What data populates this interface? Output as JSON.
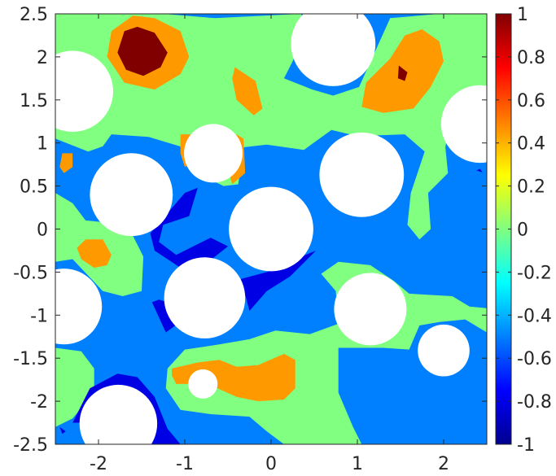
{
  "chart_data": {
    "type": "heatmap",
    "title": "",
    "xlabel": "",
    "ylabel": "",
    "xlim": [
      -2.5,
      2.5
    ],
    "ylim": [
      -2.5,
      2.5
    ],
    "x_ticks": [
      -2,
      -1,
      0,
      1,
      2
    ],
    "x_tick_labels": [
      "-2",
      "-1",
      "0",
      "1",
      "2"
    ],
    "y_ticks": [
      2.5,
      2,
      1.5,
      1,
      0.5,
      0,
      -0.5,
      -1,
      -1.5,
      -2,
      -2.5
    ],
    "y_tick_labels": [
      "2.5",
      "2",
      "1.5",
      "1",
      "0.5",
      "0",
      "-0.5",
      "-1",
      "-1.5",
      "-2",
      "-2.5"
    ],
    "colorbar": {
      "colormap": "jet",
      "range": [
        -1,
        1
      ],
      "ticks": [
        1,
        0.8,
        0.6,
        0.4,
        0.2,
        0,
        -0.2,
        -0.4,
        -0.6,
        -0.8,
        -1
      ],
      "tick_labels": [
        "1",
        "0.8",
        "0.6",
        "0.4",
        "0.2",
        "0",
        "-0.2",
        "-0.4",
        "-0.6",
        "-0.8",
        "-1"
      ]
    },
    "background_level": -0.5,
    "holes": [
      {
        "x": -2.3,
        "y": 1.6,
        "r": 0.47
      },
      {
        "x": 0.72,
        "y": 2.15,
        "r": 0.49
      },
      {
        "x": 2.42,
        "y": 1.22,
        "r": 0.45
      },
      {
        "x": -0.67,
        "y": 0.88,
        "r": 0.34
      },
      {
        "x": -1.62,
        "y": 0.4,
        "r": 0.48
      },
      {
        "x": 1.05,
        "y": 0.63,
        "r": 0.49
      },
      {
        "x": 0.0,
        "y": 0.0,
        "r": 0.49
      },
      {
        "x": -0.77,
        "y": -0.8,
        "r": 0.47
      },
      {
        "x": -2.4,
        "y": -0.9,
        "r": 0.44
      },
      {
        "x": 1.15,
        "y": -0.93,
        "r": 0.42
      },
      {
        "x": 2.0,
        "y": -1.41,
        "r": 0.3
      },
      {
        "x": -0.79,
        "y": -1.8,
        "r": 0.17
      },
      {
        "x": -1.77,
        "y": -2.26,
        "r": 0.45
      }
    ],
    "level_regions": [
      {
        "level": 0.0,
        "points": [
          [
            -2.5,
            2.5
          ],
          [
            -1.25,
            2.5
          ],
          [
            -0.65,
            2.45
          ],
          [
            0.35,
            2.5
          ],
          [
            0.4,
            2.3
          ],
          [
            0.25,
            1.95
          ],
          [
            0.15,
            1.75
          ],
          [
            0.48,
            1.62
          ],
          [
            0.72,
            1.55
          ],
          [
            1.02,
            1.65
          ],
          [
            1.2,
            2.05
          ],
          [
            1.38,
            2.45
          ],
          [
            1.95,
            2.5
          ],
          [
            2.5,
            2.5
          ],
          [
            2.5,
            1.15
          ],
          [
            2.05,
            1.12
          ],
          [
            2.02,
            0.95
          ],
          [
            2.05,
            0.65
          ],
          [
            1.82,
            0.42
          ],
          [
            1.85,
            0.0
          ],
          [
            1.72,
            -0.12
          ],
          [
            1.58,
            0.05
          ],
          [
            1.62,
            0.42
          ],
          [
            1.78,
            0.9
          ],
          [
            1.55,
            1.1
          ],
          [
            1.0,
            1.08
          ],
          [
            0.7,
            1.15
          ],
          [
            0.38,
            0.92
          ],
          [
            -0.05,
            0.98
          ],
          [
            -0.32,
            0.95
          ],
          [
            -0.38,
            0.52
          ],
          [
            -0.55,
            0.5
          ],
          [
            -0.92,
            0.68
          ],
          [
            -1.02,
            0.95
          ],
          [
            -1.42,
            1.07
          ],
          [
            -1.85,
            1.1
          ],
          [
            -1.95,
            0.96
          ],
          [
            -2.12,
            0.9
          ],
          [
            -2.5,
            1.05
          ]
        ]
      },
      {
        "level": 0.0,
        "points": [
          [
            -2.5,
            -0.38
          ],
          [
            -2.3,
            -0.35
          ],
          [
            -1.95,
            -0.72
          ],
          [
            -1.72,
            -0.78
          ],
          [
            -1.5,
            -0.72
          ],
          [
            -1.48,
            -0.32
          ],
          [
            -1.6,
            -0.08
          ],
          [
            -1.95,
            0.08
          ],
          [
            -2.15,
            0.1
          ],
          [
            -2.3,
            0.3
          ],
          [
            -2.5,
            0.42
          ]
        ]
      },
      {
        "level": 0.0,
        "points": [
          [
            -1.2,
            -1.62
          ],
          [
            -1.0,
            -1.4
          ],
          [
            -0.6,
            -1.34
          ],
          [
            -0.25,
            -1.28
          ],
          [
            0.05,
            -1.18
          ],
          [
            0.45,
            -1.22
          ],
          [
            0.78,
            -1.1
          ],
          [
            0.75,
            -0.72
          ],
          [
            0.58,
            -0.52
          ],
          [
            0.78,
            -0.38
          ],
          [
            1.15,
            -0.42
          ],
          [
            1.42,
            -0.6
          ],
          [
            1.6,
            -0.75
          ],
          [
            2.1,
            -0.78
          ],
          [
            2.3,
            -0.9
          ],
          [
            2.5,
            -0.92
          ],
          [
            2.5,
            -1.2
          ],
          [
            2.25,
            -1.05
          ],
          [
            1.95,
            -1.08
          ],
          [
            1.72,
            -1.12
          ],
          [
            1.6,
            -1.4
          ],
          [
            1.3,
            -1.38
          ],
          [
            0.78,
            -1.38
          ],
          [
            0.78,
            -1.9
          ],
          [
            0.95,
            -2.3
          ],
          [
            1.05,
            -2.5
          ],
          [
            0.15,
            -2.5
          ],
          [
            -0.05,
            -2.35
          ],
          [
            -0.25,
            -2.18
          ],
          [
            -0.7,
            -2.15
          ],
          [
            -1.05,
            -2.1
          ],
          [
            -1.22,
            -1.85
          ]
        ]
      },
      {
        "level": 0.0,
        "points": [
          [
            -2.5,
            -1.38
          ],
          [
            -2.2,
            -1.42
          ],
          [
            -2.05,
            -1.62
          ],
          [
            -2.05,
            -1.9
          ],
          [
            -2.3,
            -2.2
          ],
          [
            -2.5,
            -2.3
          ]
        ]
      },
      {
        "level": -0.8,
        "points": [
          [
            -1.3,
            -0.15
          ],
          [
            -1.1,
            -0.3
          ],
          [
            -0.7,
            -0.1
          ],
          [
            -0.5,
            -0.2
          ],
          [
            -0.75,
            -0.4
          ],
          [
            -1.05,
            -0.45
          ],
          [
            -1.2,
            -0.35
          ],
          [
            -1.35,
            -0.25
          ],
          [
            -1.4,
            -0.05
          ],
          [
            -1.0,
            0.42
          ],
          [
            -0.85,
            0.48
          ],
          [
            -0.95,
            0.15
          ],
          [
            -1.25,
            0.05
          ]
        ]
      },
      {
        "level": -0.8,
        "points": [
          [
            0.52,
            -0.25
          ],
          [
            0.22,
            -0.55
          ],
          [
            -0.05,
            -0.72
          ],
          [
            -0.25,
            -0.95
          ],
          [
            -0.35,
            -0.58
          ],
          [
            -0.05,
            -0.5
          ],
          [
            0.28,
            -0.35
          ]
        ]
      },
      {
        "level": -0.8,
        "points": [
          [
            -1.38,
            -0.85
          ],
          [
            -1.22,
            -1.2
          ],
          [
            -1.08,
            -1.1
          ],
          [
            -1.2,
            -0.85
          ],
          [
            -1.3,
            -0.82
          ]
        ]
      },
      {
        "level": -0.8,
        "points": [
          [
            -2.3,
            -2.25
          ],
          [
            -2.1,
            -1.85
          ],
          [
            -1.78,
            -1.68
          ],
          [
            -1.55,
            -1.72
          ],
          [
            -1.35,
            -1.95
          ],
          [
            -1.2,
            -2.32
          ],
          [
            -1.05,
            -2.5
          ],
          [
            -1.5,
            -2.5
          ],
          [
            -1.8,
            -2.15
          ],
          [
            -2.15,
            -2.25
          ]
        ]
      },
      {
        "level": -0.8,
        "points": [
          [
            -2.45,
            -2.3
          ],
          [
            -2.38,
            -2.35
          ],
          [
            -2.42,
            -2.38
          ]
        ]
      },
      {
        "level": -0.8,
        "points": [
          [
            2.38,
            0.68
          ],
          [
            2.45,
            0.66
          ],
          [
            2.42,
            0.7
          ]
        ]
      },
      {
        "level": 0.45,
        "points": [
          [
            -1.35,
            2.45
          ],
          [
            -1.05,
            2.3
          ],
          [
            -0.95,
            2.0
          ],
          [
            -1.05,
            1.8
          ],
          [
            -1.35,
            1.62
          ],
          [
            -1.7,
            1.7
          ],
          [
            -1.9,
            2.0
          ],
          [
            -1.85,
            2.3
          ],
          [
            -1.6,
            2.48
          ]
        ]
      },
      {
        "level": 0.45,
        "points": [
          [
            -0.42,
            1.88
          ],
          [
            -0.18,
            1.72
          ],
          [
            -0.1,
            1.4
          ],
          [
            -0.2,
            1.32
          ],
          [
            -0.4,
            1.5
          ],
          [
            -0.45,
            1.75
          ]
        ]
      },
      {
        "level": 0.45,
        "points": [
          [
            1.75,
            2.32
          ],
          [
            1.95,
            2.18
          ],
          [
            2.0,
            1.95
          ],
          [
            1.85,
            1.65
          ],
          [
            1.65,
            1.4
          ],
          [
            1.3,
            1.35
          ],
          [
            1.05,
            1.42
          ],
          [
            1.1,
            1.7
          ],
          [
            1.38,
            1.98
          ],
          [
            1.55,
            2.25
          ]
        ]
      },
      {
        "level": 0.45,
        "points": [
          [
            -1.05,
            1.1
          ],
          [
            -0.92,
            1.1
          ],
          [
            -0.95,
            0.75
          ],
          [
            -1.0,
            0.72
          ],
          [
            -1.05,
            0.88
          ]
        ]
      },
      {
        "level": 0.45,
        "points": [
          [
            -0.4,
            1.1
          ],
          [
            -0.32,
            1.05
          ],
          [
            -0.3,
            0.65
          ],
          [
            -0.45,
            0.52
          ],
          [
            -0.5,
            0.7
          ]
        ]
      },
      {
        "level": 0.45,
        "points": [
          [
            -2.42,
            0.88
          ],
          [
            -2.3,
            0.88
          ],
          [
            -2.3,
            0.72
          ],
          [
            -2.4,
            0.65
          ],
          [
            -2.45,
            0.72
          ]
        ]
      },
      {
        "level": 0.45,
        "points": [
          [
            -2.15,
            -0.12
          ],
          [
            -1.95,
            -0.12
          ],
          [
            -1.85,
            -0.3
          ],
          [
            -1.9,
            -0.42
          ],
          [
            -2.05,
            -0.45
          ],
          [
            -2.2,
            -0.35
          ],
          [
            -2.25,
            -0.22
          ]
        ]
      },
      {
        "level": 0.45,
        "points": [
          [
            -1.15,
            -1.62
          ],
          [
            -0.85,
            -1.55
          ],
          [
            -0.6,
            -1.52
          ],
          [
            -0.4,
            -1.6
          ],
          [
            -0.15,
            -1.58
          ],
          [
            0.15,
            -1.45
          ],
          [
            0.28,
            -1.52
          ],
          [
            0.28,
            -1.85
          ],
          [
            0.15,
            -1.98
          ],
          [
            -0.15,
            -2.0
          ],
          [
            -0.4,
            -1.95
          ],
          [
            -0.62,
            -1.85
          ],
          [
            -0.85,
            -1.8
          ],
          [
            -1.1,
            -1.8
          ],
          [
            -1.15,
            -1.7
          ]
        ]
      },
      {
        "level": 1.0,
        "points": [
          [
            -1.55,
            2.35
          ],
          [
            -1.35,
            2.28
          ],
          [
            -1.2,
            2.05
          ],
          [
            -1.28,
            1.88
          ],
          [
            -1.48,
            1.78
          ],
          [
            -1.68,
            1.85
          ],
          [
            -1.78,
            2.05
          ],
          [
            -1.7,
            2.3
          ]
        ]
      },
      {
        "level": 1.0,
        "points": [
          [
            1.48,
            1.9
          ],
          [
            1.58,
            1.82
          ],
          [
            1.55,
            1.72
          ],
          [
            1.47,
            1.75
          ]
        ]
      }
    ]
  }
}
